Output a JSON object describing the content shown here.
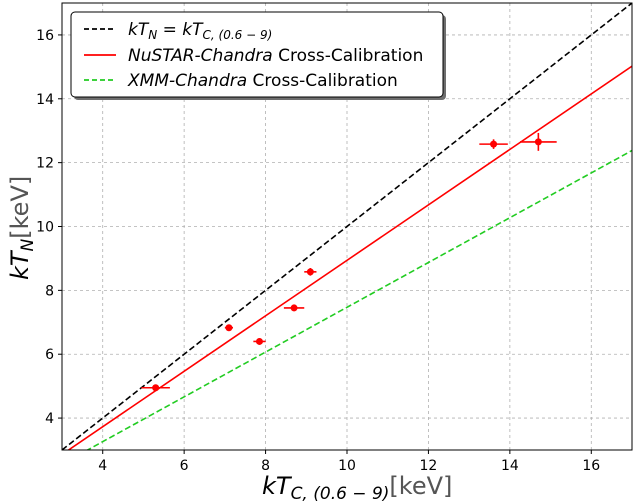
{
  "chart_data": {
    "type": "scatter",
    "title": "",
    "xlabel": {
      "main": "kT",
      "sub": "C, (0.6 − 9)",
      "unit": "[keV]"
    },
    "ylabel": {
      "main": "kT",
      "sub": "N",
      "unit": "[keV]"
    },
    "xlim": [
      3,
      17
    ],
    "ylim": [
      3,
      17
    ],
    "x_ticks": [
      4,
      6,
      8,
      10,
      12,
      14,
      16
    ],
    "y_ticks": [
      4,
      6,
      8,
      10,
      12,
      14,
      16
    ],
    "grid": true,
    "legend_position": "top-left",
    "series": [
      {
        "name": "kT_N = kT_C,(0.6−9)",
        "legend": {
          "pre": "kT",
          "sub1": "N",
          "mid": " = kT",
          "sub2": "C, (0.6 − 9)",
          "post": ""
        },
        "kind": "line",
        "style": "dashed",
        "color": "#000000",
        "x": [
          3,
          17
        ],
        "y": [
          3,
          17
        ]
      },
      {
        "name": "NuSTAR-Chandra Cross-Calibration",
        "legend": {
          "italic": "NuSTAR-Chandra",
          "rest": " Cross-Calibration"
        },
        "kind": "line",
        "style": "solid",
        "color": "#ff0000",
        "x": [
          3,
          17
        ],
        "y": [
          2.86,
          15.02
        ]
      },
      {
        "name": "XMM-Chandra Cross-Calibration",
        "legend": {
          "italic": "XMM-Chandra",
          "rest": " Cross-Calibration"
        },
        "kind": "line",
        "style": "dashed",
        "color": "#22cc22",
        "x": [
          3,
          17
        ],
        "y": [
          2.56,
          12.38
        ]
      },
      {
        "name": "data",
        "kind": "errorbar",
        "color": "#ff0000",
        "points": [
          {
            "x": 5.3,
            "y": 4.95,
            "xerr": 0.35,
            "yerr": 0.08
          },
          {
            "x": 7.1,
            "y": 6.83,
            "xerr": 0.1,
            "yerr": 0.08
          },
          {
            "x": 7.85,
            "y": 6.4,
            "xerr": 0.15,
            "yerr": 0.1
          },
          {
            "x": 8.7,
            "y": 7.45,
            "xerr": 0.25,
            "yerr": 0.1
          },
          {
            "x": 9.1,
            "y": 8.58,
            "xerr": 0.15,
            "yerr": 0.12
          },
          {
            "x": 13.6,
            "y": 12.58,
            "xerr": 0.35,
            "yerr": 0.15
          },
          {
            "x": 14.7,
            "y": 12.65,
            "xerr": 0.45,
            "yerr": 0.28
          }
        ]
      }
    ]
  }
}
